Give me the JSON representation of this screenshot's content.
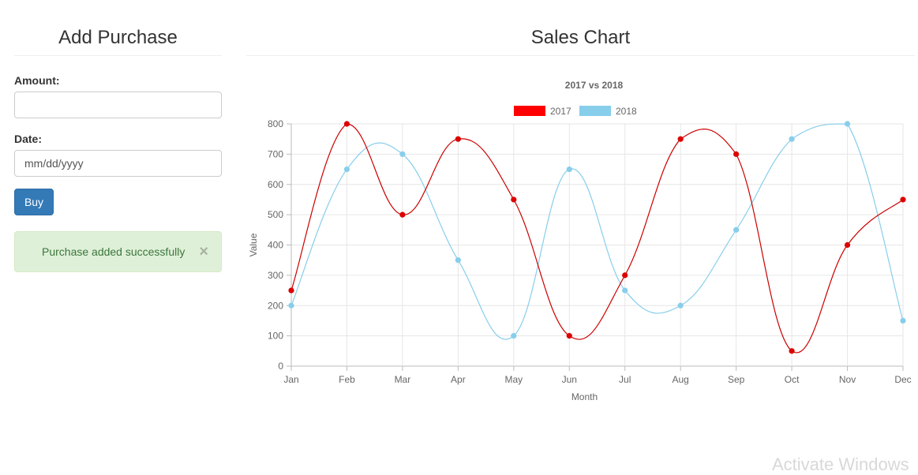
{
  "form": {
    "title": "Add Purchase",
    "amount_label": "Amount:",
    "amount_value": "",
    "date_label": "Date:",
    "date_placeholder": "mm/dd/yyyy",
    "buy_label": "Buy"
  },
  "alert": {
    "message": "Purchase added successfully",
    "close_symbol": "×"
  },
  "chart_section": {
    "title": "Sales Chart"
  },
  "chart_data": {
    "type": "line",
    "title": "2017 vs 2018",
    "xlabel": "Month",
    "ylabel": "Value",
    "categories": [
      "Jan",
      "Feb",
      "Mar",
      "Apr",
      "May",
      "Jun",
      "Jul",
      "Aug",
      "Sep",
      "Oct",
      "Nov",
      "Dec"
    ],
    "ylim": [
      0,
      800
    ],
    "yticks": [
      0,
      100,
      200,
      300,
      400,
      500,
      600,
      700,
      800
    ],
    "grid": true,
    "legend_position": "top",
    "series": [
      {
        "name": "2017",
        "color": "#ff0000",
        "values": [
          250,
          800,
          500,
          750,
          550,
          100,
          300,
          750,
          700,
          50,
          400,
          550
        ]
      },
      {
        "name": "2018",
        "color": "#87ceeb",
        "values": [
          200,
          650,
          700,
          350,
          100,
          650,
          250,
          200,
          450,
          750,
          800,
          150
        ]
      }
    ]
  },
  "watermark_text": "Activate Windows"
}
